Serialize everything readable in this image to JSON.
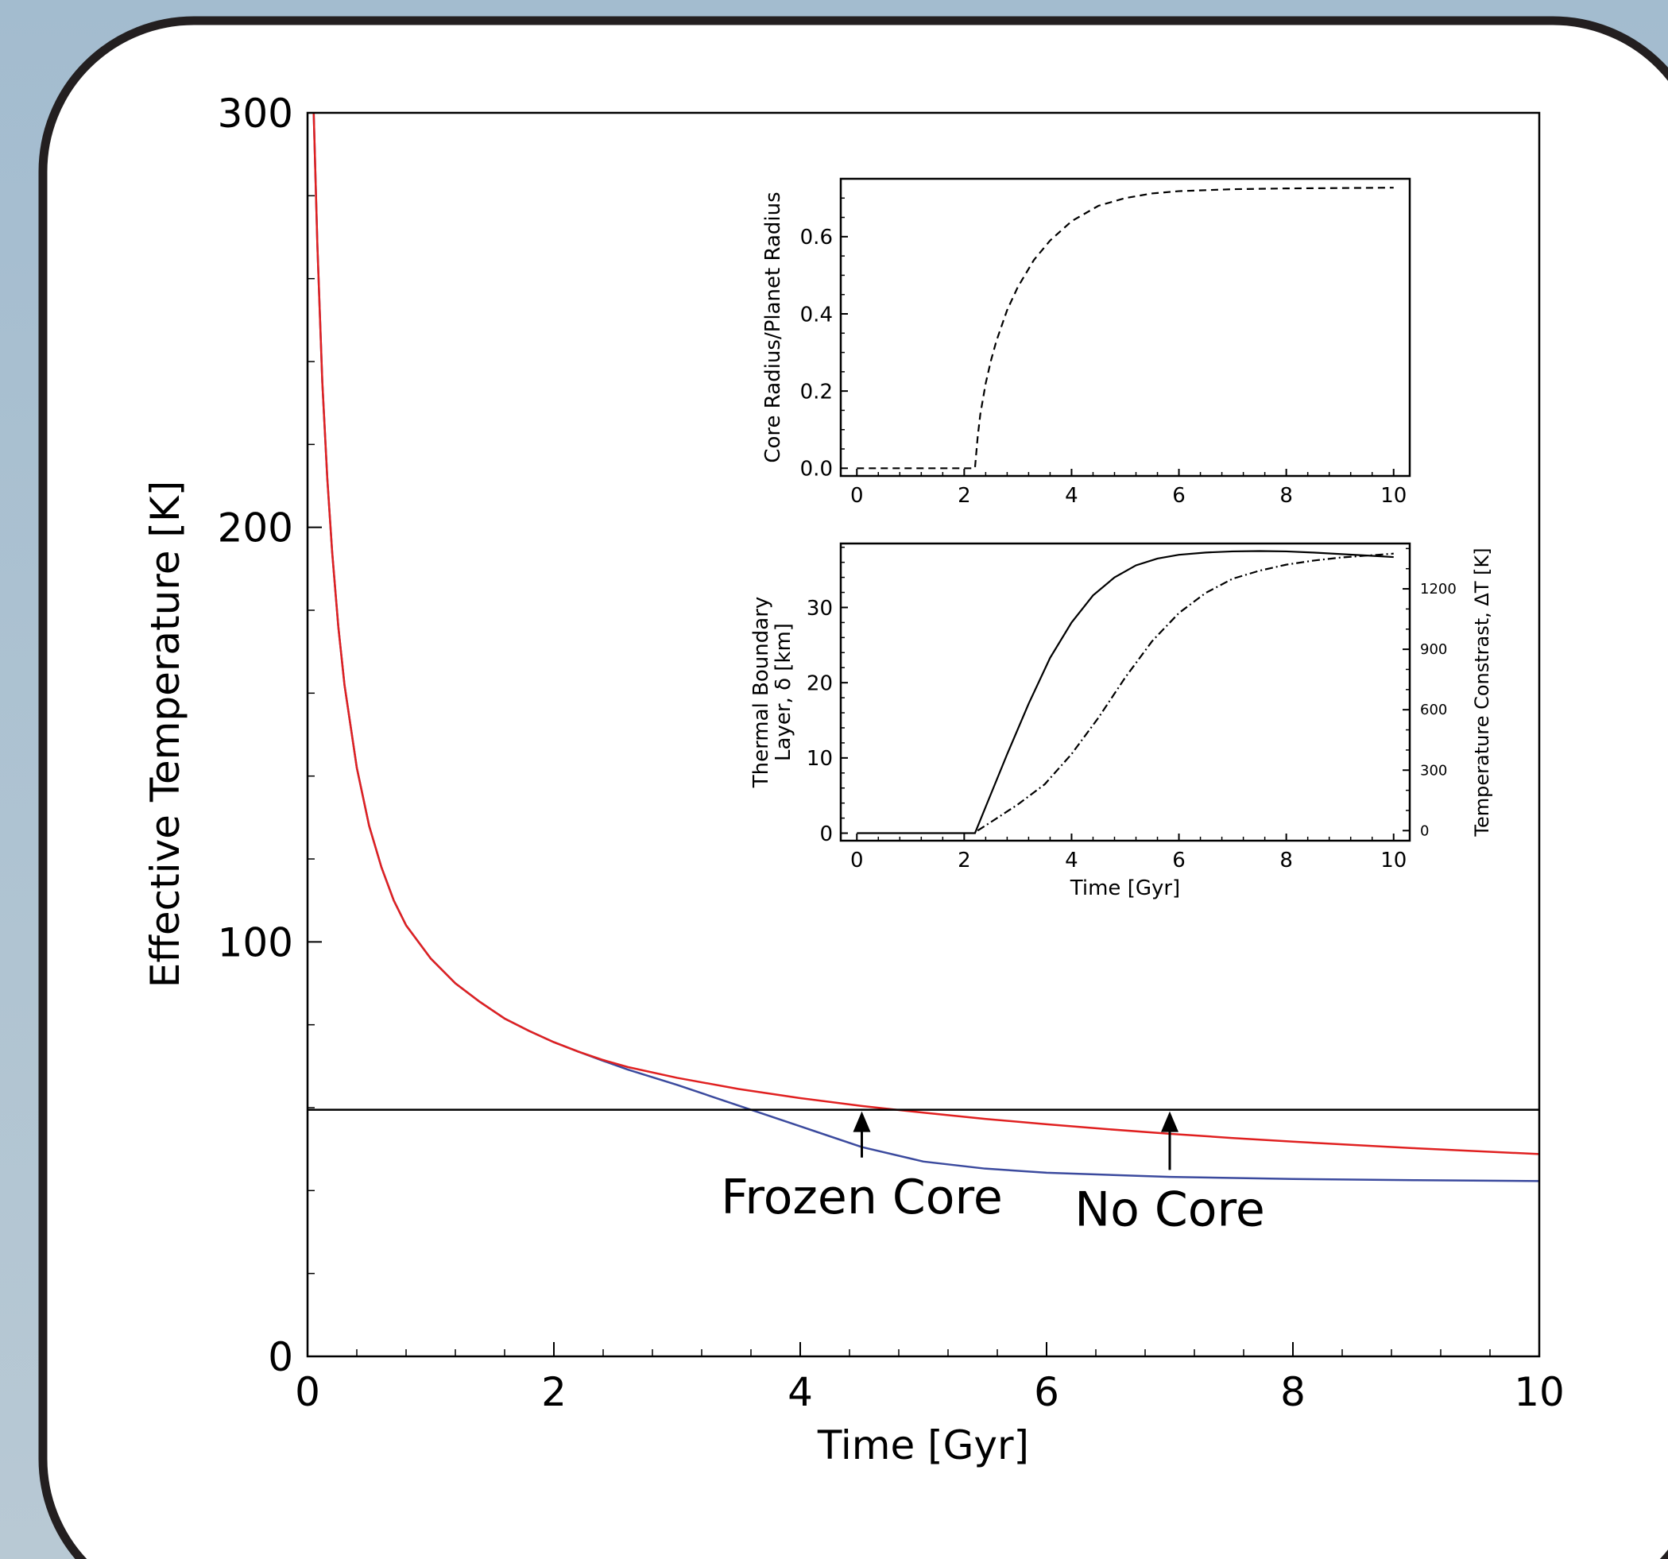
{
  "colors": {
    "background": "#a3bccf",
    "panel": "#ffffff",
    "panel_border": "#231f20",
    "frozen_core": "#3b4a9e",
    "no_core": "#e02020",
    "threshold": "#000000"
  },
  "chart_data": [
    {
      "id": "main",
      "type": "line",
      "xlabel": "Time [Gyr]",
      "ylabel": "Effective Temperature [K]",
      "xlim": [
        0,
        10
      ],
      "ylim": [
        0,
        300
      ],
      "xticks": [
        0,
        2,
        4,
        6,
        8,
        10
      ],
      "yticks": [
        0,
        100,
        200,
        300
      ],
      "xminor_step": 0.4,
      "yminor_step": 20,
      "grid": false,
      "series": [
        {
          "key": "frozen_core",
          "x": [
            0.05,
            0.08,
            0.12,
            0.16,
            0.2,
            0.25,
            0.3,
            0.4,
            0.5,
            0.6,
            0.7,
            0.8,
            1.0,
            1.2,
            1.4,
            1.6,
            1.8,
            2.0,
            2.2,
            2.4,
            2.6,
            3.0,
            3.5,
            4.0,
            4.5,
            5.0,
            5.5,
            6.0,
            7.0,
            8.0,
            9.0,
            10.0
          ],
          "y": [
            300,
            268,
            235,
            212,
            194,
            176,
            162,
            142,
            128,
            118,
            110,
            104,
            96,
            90,
            85.5,
            81.5,
            78.5,
            75.8,
            73.5,
            71.3,
            69.2,
            65.5,
            60.5,
            55.5,
            50.5,
            47.0,
            45.3,
            44.3,
            43.3,
            42.8,
            42.5,
            42.3
          ]
        },
        {
          "key": "no_core",
          "x": [
            0.05,
            0.08,
            0.12,
            0.16,
            0.2,
            0.25,
            0.3,
            0.4,
            0.5,
            0.6,
            0.7,
            0.8,
            1.0,
            1.2,
            1.4,
            1.6,
            1.8,
            2.0,
            2.2,
            2.4,
            2.6,
            3.0,
            3.5,
            4.0,
            4.5,
            5.0,
            5.5,
            6.0,
            6.5,
            7.0,
            7.5,
            8.0,
            9.0,
            10.0
          ],
          "y": [
            300,
            268,
            235,
            212,
            194,
            176,
            162,
            142,
            128,
            118,
            110,
            104,
            96,
            90,
            85.5,
            81.5,
            78.5,
            75.8,
            73.5,
            71.5,
            69.8,
            67.2,
            64.5,
            62.3,
            60.4,
            58.8,
            57.3,
            56.0,
            54.8,
            53.7,
            52.7,
            51.8,
            50.2,
            48.8
          ]
        },
        {
          "key": "threshold",
          "x": [
            0,
            10
          ],
          "y": [
            59.5,
            59.5
          ]
        }
      ],
      "annotations": [
        {
          "text": "Frozen Core",
          "x": 4.5,
          "y": 59.5,
          "text_y": 38
        },
        {
          "text": "No Core",
          "x": 7.0,
          "y": 59.5,
          "text_y": 35
        }
      ]
    },
    {
      "id": "inset_core",
      "type": "line",
      "ylabel": "Core Radius/Planet Radius",
      "xlim": [
        -0.3,
        10.3
      ],
      "ylim": [
        -0.02,
        0.75
      ],
      "xticks": [
        0,
        2,
        4,
        6,
        8,
        10
      ],
      "yticks": [
        0.0,
        0.2,
        0.4,
        0.6
      ],
      "ytick_labels": [
        "0.0",
        "0.2",
        "0.4",
        "0.6"
      ],
      "xminor_step": 0.4,
      "yminor_step": 0.05,
      "series": [
        {
          "key": "core_radius",
          "style": "dashed",
          "x": [
            0,
            2.2,
            2.2,
            2.25,
            2.3,
            2.4,
            2.5,
            2.6,
            2.8,
            3.0,
            3.3,
            3.6,
            4.0,
            4.5,
            5.0,
            5.5,
            6.0,
            7.0,
            8.0,
            9.0,
            10.0
          ],
          "y": [
            0,
            0,
            0.0,
            0.08,
            0.14,
            0.22,
            0.28,
            0.33,
            0.41,
            0.47,
            0.54,
            0.59,
            0.64,
            0.68,
            0.7,
            0.712,
            0.718,
            0.723,
            0.725,
            0.726,
            0.727
          ]
        }
      ]
    },
    {
      "id": "inset_tbl",
      "type": "line",
      "xlabel": "Time [Gyr]",
      "ylabel": "Thermal Boundary Layer, δ [km]",
      "ylabel_lines": [
        "Thermal Boundary",
        "Layer, δ [km]"
      ],
      "ylabel_right": "Temperature Constrast, ΔT [K]",
      "xlim": [
        -0.3,
        10.3
      ],
      "ylim": [
        -1,
        38.5
      ],
      "ylim_right": [
        -50,
        1425
      ],
      "xticks": [
        0,
        2,
        4,
        6,
        8,
        10
      ],
      "yticks": [
        0,
        10,
        20,
        30
      ],
      "yticks_right": [
        0,
        300,
        600,
        900,
        1200
      ],
      "xminor_step": 0.4,
      "yminor_step": 2,
      "yminor_step_right": 100,
      "series": [
        {
          "key": "boundary_layer",
          "style": "solid",
          "axis": "left",
          "x": [
            0,
            2.2,
            2.4,
            2.8,
            3.2,
            3.6,
            4.0,
            4.4,
            4.8,
            5.2,
            5.6,
            6.0,
            6.5,
            7.0,
            7.5,
            8.0,
            8.5,
            9.0,
            9.5,
            10.0
          ],
          "y": [
            0,
            0,
            3.5,
            10.5,
            17.2,
            23.3,
            28.0,
            31.6,
            34.0,
            35.6,
            36.5,
            37.0,
            37.3,
            37.45,
            37.5,
            37.45,
            37.3,
            37.1,
            36.9,
            36.7
          ]
        },
        {
          "key": "temperature_contrast",
          "style": "dashdot",
          "axis": "right",
          "x": [
            2.25,
            2.6,
            3.0,
            3.5,
            4.0,
            4.5,
            5.0,
            5.5,
            6.0,
            6.5,
            7.0,
            7.5,
            8.0,
            8.5,
            9.0,
            9.5,
            10.0
          ],
          "y": [
            0,
            60,
            130,
            230,
            380,
            560,
            760,
            940,
            1080,
            1180,
            1250,
            1290,
            1320,
            1340,
            1355,
            1365,
            1375
          ]
        }
      ]
    }
  ]
}
